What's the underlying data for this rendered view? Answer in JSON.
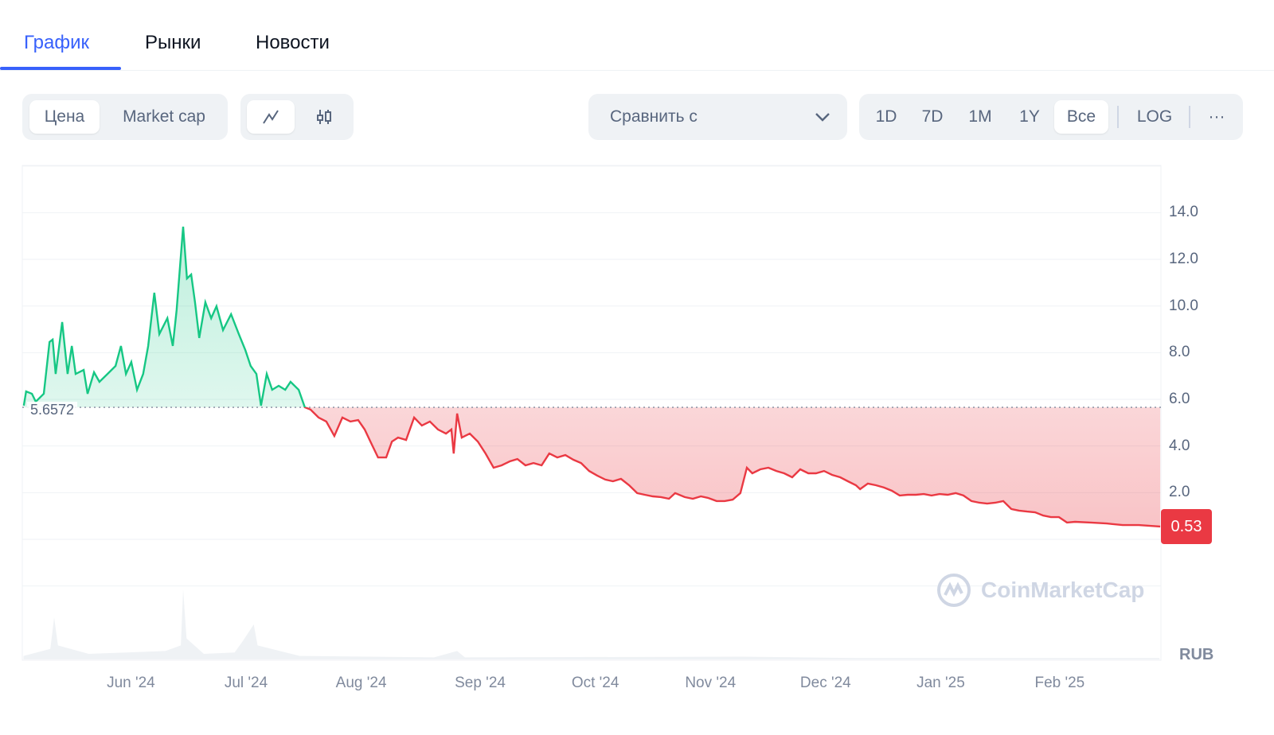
{
  "tabs": [
    {
      "label": "График"
    },
    {
      "label": "Рынки"
    },
    {
      "label": "Новости"
    }
  ],
  "toolbar": {
    "metric": [
      "Цена",
      "Market cap"
    ],
    "chart_type_icons": [
      "line-chart-icon",
      "candlestick-icon"
    ],
    "compare_label": "Сравнить с",
    "ranges": [
      "1D",
      "7D",
      "1M",
      "1Y",
      "Все"
    ],
    "active_range": "Все",
    "log_label": "LOG",
    "more_label": "···"
  },
  "colors": {
    "accent": "#3861fb",
    "up": "#16c784",
    "down": "#ea3943"
  },
  "chart_data": {
    "type": "line",
    "title": "",
    "currency": "RUB",
    "x_unit": "days since 2024-05-01",
    "baseline_value": 5.6572,
    "baseline_label": "5.6572",
    "current_price_label": "0.53",
    "ylim": [
      -2,
      16
    ],
    "yticks": [
      {
        "v": 14,
        "label": "14.0"
      },
      {
        "v": 12,
        "label": "12.0"
      },
      {
        "v": 10,
        "label": "10.0"
      },
      {
        "v": 8,
        "label": "8.0"
      },
      {
        "v": 6,
        "label": "6.0"
      },
      {
        "v": 4,
        "label": "4.0"
      },
      {
        "v": 2,
        "label": "2.0"
      }
    ],
    "xlim": [
      3,
      299
    ],
    "xticks": [
      {
        "d": 31,
        "label": "Jun '24"
      },
      {
        "d": 61,
        "label": "Jul '24"
      },
      {
        "d": 91,
        "label": "Aug '24"
      },
      {
        "d": 122,
        "label": "Sep '24"
      },
      {
        "d": 152,
        "label": "Oct '24"
      },
      {
        "d": 182,
        "label": "Nov '24"
      },
      {
        "d": 212,
        "label": "Dec '24"
      },
      {
        "d": 242,
        "label": "Jan '25"
      },
      {
        "d": 273,
        "label": "Feb '25"
      }
    ],
    "series": [
      {
        "name": "Price",
        "points": [
          [
            3.1,
            5.73
          ],
          [
            3.7,
            6.34
          ],
          [
            5.2,
            6.24
          ],
          [
            6.2,
            5.9
          ],
          [
            8.3,
            6.24
          ],
          [
            9.8,
            8.46
          ],
          [
            10.6,
            8.56
          ],
          [
            11.4,
            7.09
          ],
          [
            13.1,
            9.31
          ],
          [
            14.5,
            7.09
          ],
          [
            15.6,
            8.29
          ],
          [
            16.6,
            7.09
          ],
          [
            18.7,
            7.26
          ],
          [
            19.7,
            6.24
          ],
          [
            21.4,
            7.16
          ],
          [
            22.8,
            6.75
          ],
          [
            24.9,
            7.09
          ],
          [
            27,
            7.43
          ],
          [
            28.4,
            8.29
          ],
          [
            29.7,
            7.09
          ],
          [
            31.1,
            7.6
          ],
          [
            32.6,
            6.41
          ],
          [
            34.2,
            7.09
          ],
          [
            35.5,
            8.29
          ],
          [
            37.1,
            10.57
          ],
          [
            38.4,
            8.8
          ],
          [
            40.5,
            9.48
          ],
          [
            41.9,
            8.29
          ],
          [
            42.9,
            9.82
          ],
          [
            44.6,
            13.4
          ],
          [
            45.6,
            11.18
          ],
          [
            46.7,
            11.35
          ],
          [
            47.7,
            10.16
          ],
          [
            48.8,
            8.63
          ],
          [
            50.4,
            10.16
          ],
          [
            51.9,
            9.48
          ],
          [
            53.3,
            9.99
          ],
          [
            55,
            8.97
          ],
          [
            57.1,
            9.65
          ],
          [
            59.1,
            8.8
          ],
          [
            60.8,
            8.11
          ],
          [
            62.2,
            7.43
          ],
          [
            63.7,
            7.09
          ],
          [
            64.9,
            5.73
          ],
          [
            66.4,
            7.09
          ],
          [
            67.8,
            6.41
          ],
          [
            69.5,
            6.58
          ],
          [
            71.2,
            6.41
          ],
          [
            72.6,
            6.75
          ],
          [
            74.7,
            6.41
          ],
          [
            76.3,
            5.66
          ],
          [
            77.8,
            5.56
          ],
          [
            79.9,
            5.22
          ],
          [
            81.9,
            5.05
          ],
          [
            84,
            4.43
          ],
          [
            86.1,
            5.22
          ],
          [
            88.2,
            5.05
          ],
          [
            90.2,
            5.11
          ],
          [
            91.9,
            4.71
          ],
          [
            93.4,
            4.19
          ],
          [
            95.4,
            3.51
          ],
          [
            97.5,
            3.51
          ],
          [
            99,
            4.19
          ],
          [
            100.6,
            4.36
          ],
          [
            102.7,
            4.26
          ],
          [
            104.8,
            5.22
          ],
          [
            106.8,
            4.88
          ],
          [
            108.9,
            5.05
          ],
          [
            111,
            4.71
          ],
          [
            113.1,
            4.53
          ],
          [
            114.5,
            4.71
          ],
          [
            115.1,
            3.68
          ],
          [
            116,
            5.39
          ],
          [
            117.2,
            4.36
          ],
          [
            119.3,
            4.53
          ],
          [
            121.4,
            4.19
          ],
          [
            123.4,
            3.68
          ],
          [
            125.5,
            3.07
          ],
          [
            127.6,
            3.17
          ],
          [
            129.7,
            3.34
          ],
          [
            131.7,
            3.44
          ],
          [
            133.8,
            3.17
          ],
          [
            135.9,
            3.27
          ],
          [
            138,
            3.17
          ],
          [
            140,
            3.68
          ],
          [
            142.1,
            3.51
          ],
          [
            144.2,
            3.61
          ],
          [
            146.3,
            3.41
          ],
          [
            148.3,
            3.27
          ],
          [
            150.4,
            2.93
          ],
          [
            152.5,
            2.73
          ],
          [
            154.6,
            2.56
          ],
          [
            156.6,
            2.49
          ],
          [
            158.7,
            2.59
          ],
          [
            160.8,
            2.32
          ],
          [
            162.9,
            1.98
          ],
          [
            164.9,
            1.91
          ],
          [
            167,
            1.84
          ],
          [
            169.1,
            1.81
          ],
          [
            171.2,
            1.74
          ],
          [
            172.8,
            1.98
          ],
          [
            175.3,
            1.81
          ],
          [
            177.4,
            1.74
          ],
          [
            179.5,
            1.84
          ],
          [
            181.5,
            1.77
          ],
          [
            183.6,
            1.64
          ],
          [
            185.7,
            1.64
          ],
          [
            187.8,
            1.7
          ],
          [
            189.8,
            1.98
          ],
          [
            191.5,
            3.07
          ],
          [
            192.9,
            2.83
          ],
          [
            195,
            3.0
          ],
          [
            197.1,
            3.07
          ],
          [
            199.2,
            2.93
          ],
          [
            201.2,
            2.83
          ],
          [
            203.3,
            2.66
          ],
          [
            205.4,
            3.0
          ],
          [
            207.5,
            2.83
          ],
          [
            209.5,
            2.83
          ],
          [
            211.6,
            2.93
          ],
          [
            213.7,
            2.76
          ],
          [
            215.8,
            2.66
          ],
          [
            217.8,
            2.49
          ],
          [
            219.9,
            2.32
          ],
          [
            221,
            2.15
          ],
          [
            223,
            2.39
          ],
          [
            225.1,
            2.32
          ],
          [
            227.2,
            2.22
          ],
          [
            229.3,
            2.08
          ],
          [
            231.3,
            1.88
          ],
          [
            233.4,
            1.91
          ],
          [
            235.5,
            1.91
          ],
          [
            237.6,
            1.94
          ],
          [
            239.6,
            1.88
          ],
          [
            241.7,
            1.94
          ],
          [
            243.8,
            1.91
          ],
          [
            245.9,
            1.98
          ],
          [
            247.9,
            1.88
          ],
          [
            250,
            1.64
          ],
          [
            252.1,
            1.57
          ],
          [
            254.1,
            1.53
          ],
          [
            256.2,
            1.57
          ],
          [
            258.3,
            1.64
          ],
          [
            260.4,
            1.3
          ],
          [
            262.4,
            1.23
          ],
          [
            264.5,
            1.19
          ],
          [
            266.6,
            1.16
          ],
          [
            268.7,
            1.02
          ],
          [
            270.7,
            0.95
          ],
          [
            272.8,
            0.95
          ],
          [
            274.9,
            0.72
          ],
          [
            277,
            0.75
          ],
          [
            281.1,
            0.72
          ],
          [
            285.3,
            0.68
          ],
          [
            289.4,
            0.61
          ],
          [
            293.6,
            0.61
          ],
          [
            299.2,
            0.55
          ]
        ]
      }
    ],
    "volume_relative": [
      [
        3,
        0.05
      ],
      [
        10,
        0.15
      ],
      [
        11,
        0.6
      ],
      [
        12,
        0.2
      ],
      [
        20,
        0.08
      ],
      [
        30,
        0.1
      ],
      [
        40,
        0.12
      ],
      [
        44,
        0.2
      ],
      [
        44.6,
        1.0
      ],
      [
        45.5,
        0.3
      ],
      [
        50,
        0.08
      ],
      [
        58,
        0.1
      ],
      [
        60,
        0.25
      ],
      [
        63,
        0.5
      ],
      [
        64,
        0.2
      ],
      [
        75,
        0.05
      ],
      [
        110,
        0.03
      ],
      [
        116,
        0.12
      ],
      [
        118,
        0.03
      ],
      [
        190,
        0.04
      ],
      [
        220,
        0.02
      ],
      [
        299,
        0.02
      ]
    ],
    "watermark": "CoinMarketCap"
  }
}
